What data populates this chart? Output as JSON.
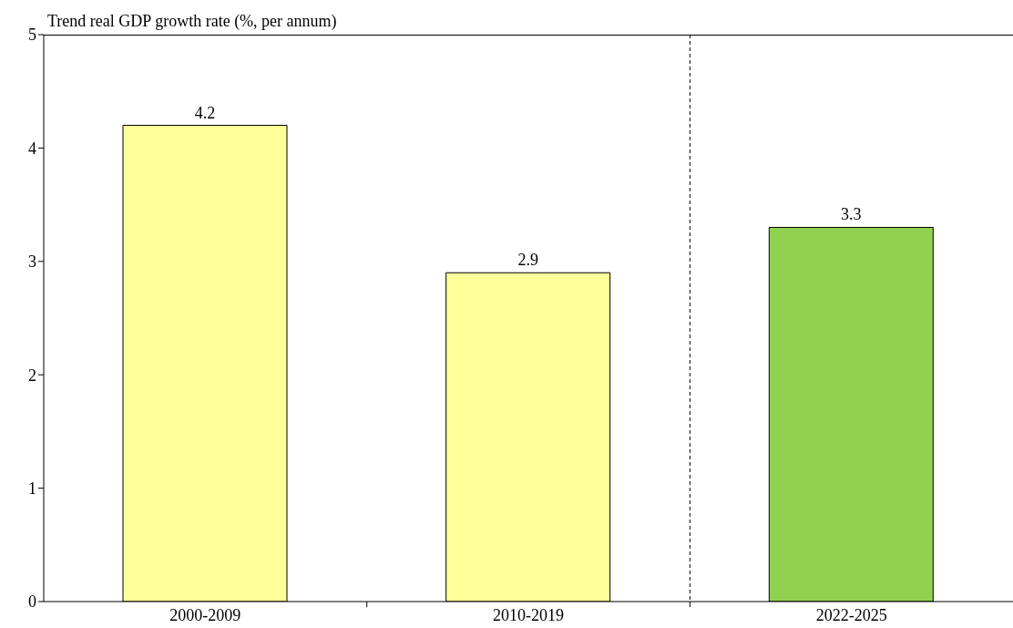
{
  "chart_data": {
    "type": "bar",
    "title": "Trend real GDP growth rate (%, per annum)",
    "categories": [
      "2000-2009",
      "2010-2019",
      "2022-2025"
    ],
    "values": [
      4.2,
      2.9,
      3.3
    ],
    "colors": [
      "#ffff99",
      "#ffff99",
      "#92d050"
    ],
    "ylim": [
      0,
      5
    ],
    "yticks": [
      0,
      1,
      2,
      3,
      4,
      5
    ],
    "grid": false,
    "data_labels": true
  }
}
